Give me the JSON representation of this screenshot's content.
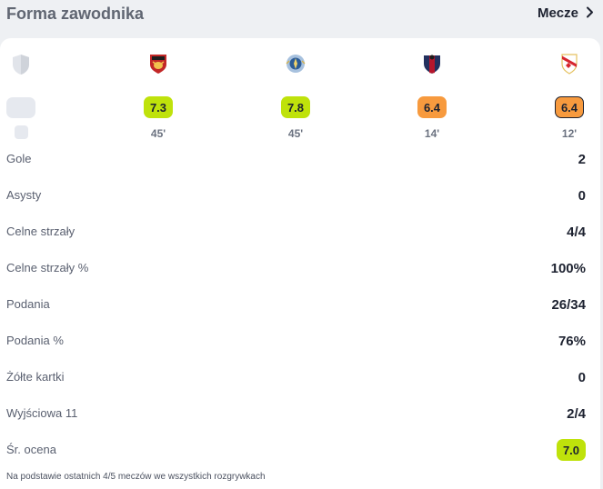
{
  "header": {
    "title": "Forma zawodnika",
    "matches_label": "Mecze"
  },
  "matches": [
    {
      "crest_icon": "bull-shield-crest-icon",
      "rating": "7.3",
      "rating_color": "#bfe20b",
      "minutes": "45'"
    },
    {
      "crest_icon": "blue-round-crest-icon",
      "rating": "7.8",
      "rating_color": "#bfe20b",
      "minutes": "45'"
    },
    {
      "crest_icon": "blaugrana-shield-crest-icon",
      "rating": "6.4",
      "rating_color": "#f79a3e",
      "minutes": "14'"
    },
    {
      "crest_icon": "red-sash-shield-crest-icon",
      "rating": "6.4",
      "rating_color": "#f79a3e",
      "minutes": "12'"
    }
  ],
  "stats": [
    {
      "label": "Gole",
      "value": "2"
    },
    {
      "label": "Asysty",
      "value": "0"
    },
    {
      "label": "Celne strzały",
      "value": "4/4"
    },
    {
      "label": "Celne strzały %",
      "value": "100%"
    },
    {
      "label": "Podania",
      "value": "26/34"
    },
    {
      "label": "Podania %",
      "value": "76%"
    },
    {
      "label": "Żółte kartki",
      "value": "0"
    },
    {
      "label": "Wyjściowa 11",
      "value": "2/4"
    }
  ],
  "average": {
    "label": "Śr. ocena",
    "value": "7.0",
    "color": "#bfe20b"
  },
  "footnote": "Na podstawie ostatnich 4/5 meczów we wszystkich rozgrywkach",
  "icons": {
    "header_link": "chevron-right-icon",
    "placeholder": "shield-placeholder-icon"
  }
}
